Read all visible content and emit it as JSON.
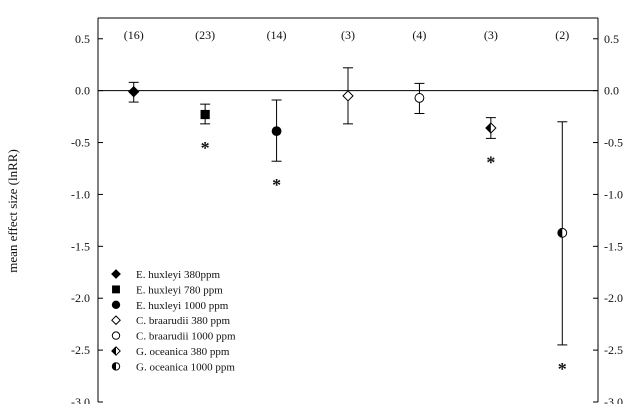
{
  "chart_data": {
    "type": "scatter",
    "ylabel": "mean effect size (lnRR)",
    "xlabel": "",
    "ylim": [
      -3.0,
      0.7
    ],
    "y_ticks": [
      "0.5",
      "0.0",
      "-0.5",
      "-1.0",
      "-1.5",
      "-2.0",
      "-2.5",
      "-3.0"
    ],
    "y_tick_values": [
      0.5,
      0.0,
      -0.5,
      -1.0,
      -1.5,
      -2.0,
      -2.5,
      -3.0
    ],
    "right_axis_mirror": true,
    "reference_line": 0.0,
    "legend_position": "bottom-left",
    "series": [
      {
        "name": "E. huxleyi 380ppm",
        "marker": "diamond-filled",
        "y": -0.01,
        "ci_low": -0.11,
        "ci_high": 0.08,
        "n_label": "(16)",
        "significant": false
      },
      {
        "name": "E. huxleyi 780 ppm",
        "marker": "square-filled",
        "y": -0.23,
        "ci_low": -0.32,
        "ci_high": -0.13,
        "n_label": "(23)",
        "significant": true
      },
      {
        "name": "E. huxleyi 1000 ppm",
        "marker": "circle-filled",
        "y": -0.39,
        "ci_low": -0.68,
        "ci_high": -0.09,
        "n_label": "(14)",
        "significant": true
      },
      {
        "name": "C. braarudii 380 ppm",
        "marker": "diamond-open",
        "y": -0.05,
        "ci_low": -0.32,
        "ci_high": 0.22,
        "n_label": "(3)",
        "significant": false
      },
      {
        "name": "C. braarudii 1000 ppm",
        "marker": "circle-open",
        "y": -0.07,
        "ci_low": -0.22,
        "ci_high": 0.07,
        "n_label": "(4)",
        "significant": false
      },
      {
        "name": "G. oceanica 380 ppm",
        "marker": "diamond-half",
        "y": -0.36,
        "ci_low": -0.46,
        "ci_high": -0.26,
        "n_label": "(3)",
        "significant": true
      },
      {
        "name": "G. oceanica 1000 ppm",
        "marker": "circle-half",
        "y": -1.37,
        "ci_low": -2.45,
        "ci_high": -0.3,
        "n_label": "(2)",
        "significant": true
      }
    ],
    "significance_marker": "*"
  }
}
